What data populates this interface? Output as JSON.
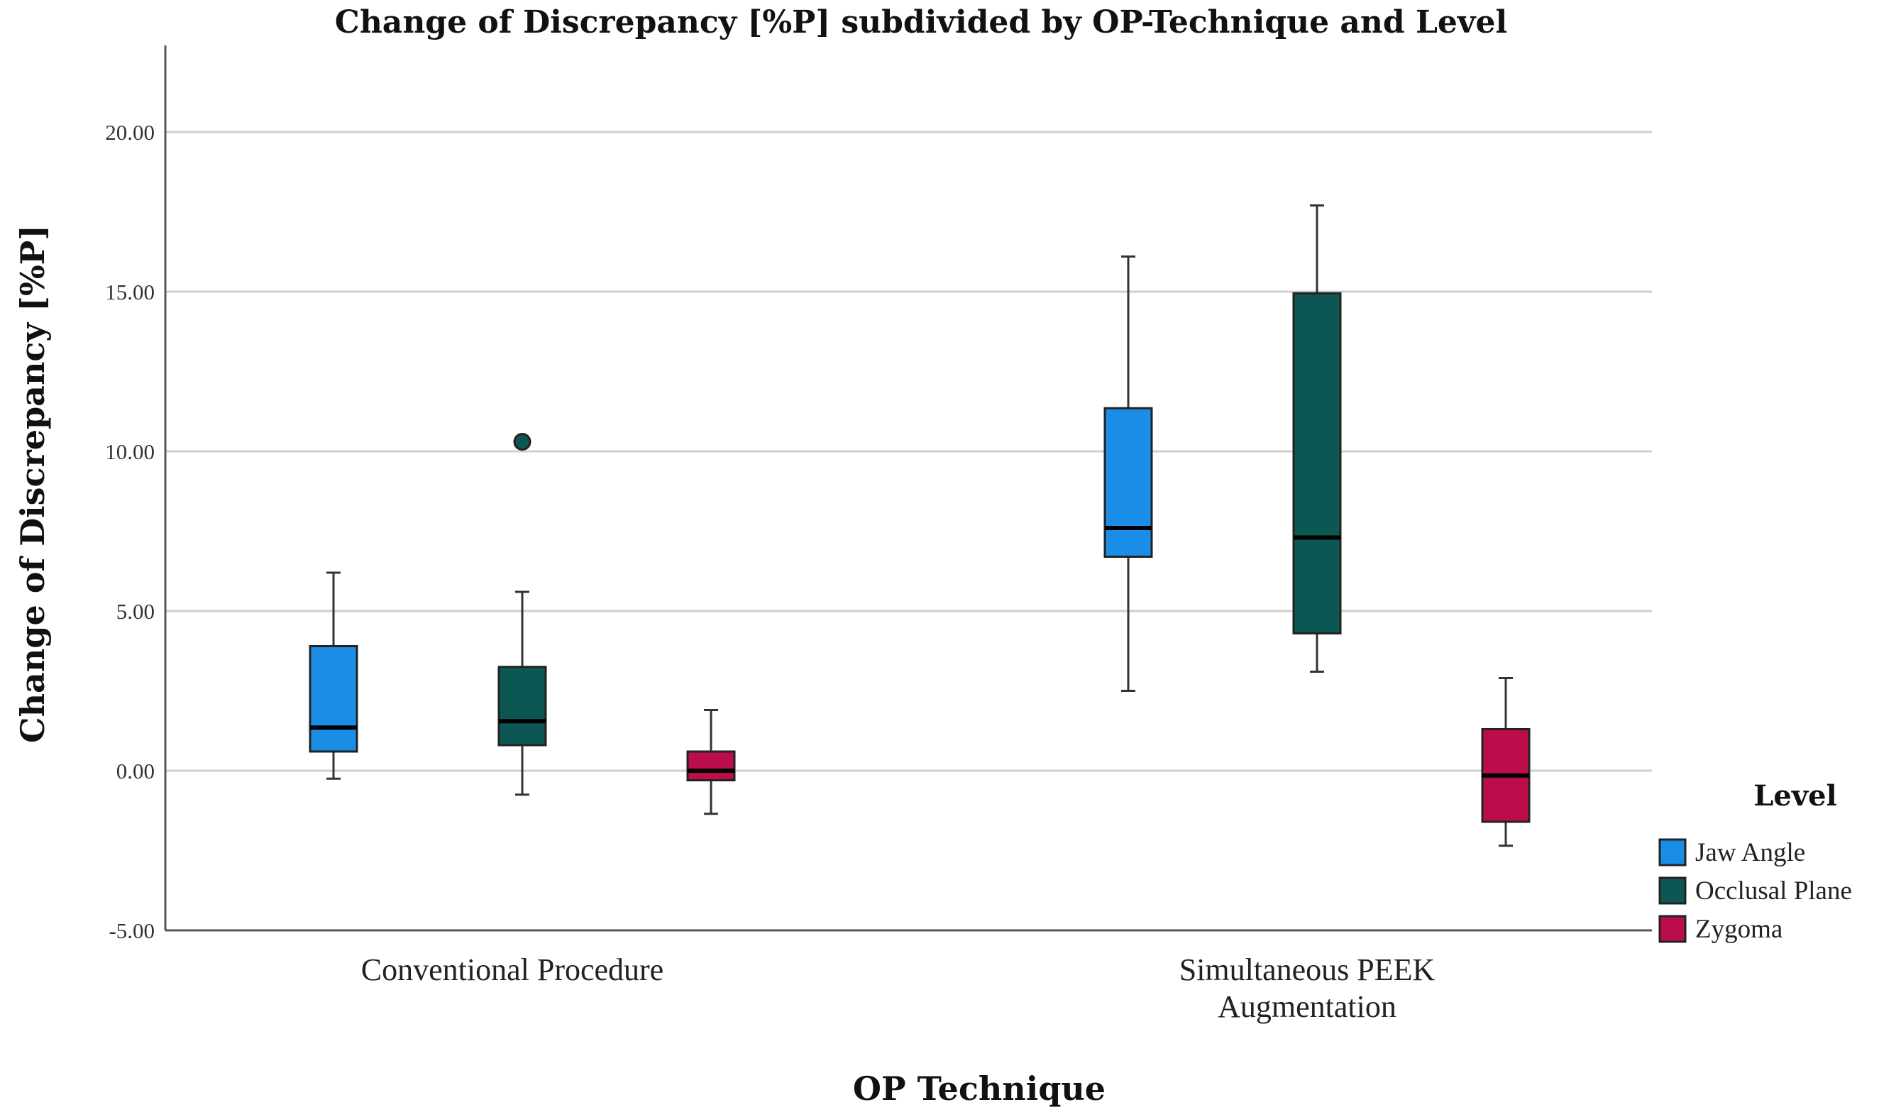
{
  "chart_data": {
    "type": "boxplot",
    "title": "Change of Discrepancy [%P] subdivided by OP-Technique and Level",
    "xlabel": "OP Technique",
    "ylabel": "Change of Discrepancy [%P]",
    "ylim": [
      -5,
      22.7
    ],
    "yticks": [
      {
        "value": 20,
        "label": "20.00"
      },
      {
        "value": 15,
        "label": "15.00"
      },
      {
        "value": 10,
        "label": "10.00"
      },
      {
        "value": 5,
        "label": "5.00"
      },
      {
        "value": 0,
        "label": "0.00"
      },
      {
        "value": -5,
        "label": "-5.00"
      }
    ],
    "grid": true,
    "categories": [
      "Conventional Procedure",
      "Simultaneous PEEK Augmentation"
    ],
    "category_lines": [
      [
        "Conventional Procedure"
      ],
      [
        "Simultaneous PEEK",
        "Augmentation"
      ]
    ],
    "legend": {
      "title": "Level",
      "placement": "right",
      "entries": [
        "Jaw Angle",
        "Occlusal Plane",
        "Zygoma"
      ]
    },
    "series": [
      {
        "name": "Jaw Angle",
        "color": "#1a8ee6",
        "boxes": [
          {
            "category": "Conventional Procedure",
            "whisker_low": -0.25,
            "q1": 0.6,
            "median": 1.35,
            "q3": 3.9,
            "whisker_high": 6.2,
            "outliers": []
          },
          {
            "category": "Simultaneous PEEK Augmentation",
            "whisker_low": 2.5,
            "q1": 6.7,
            "median": 7.6,
            "q3": 11.35,
            "whisker_high": 16.1,
            "outliers": []
          }
        ]
      },
      {
        "name": "Occlusal Plane",
        "color": "#0c5753",
        "boxes": [
          {
            "category": "Conventional Procedure",
            "whisker_low": -0.75,
            "q1": 0.8,
            "median": 1.55,
            "q3": 3.25,
            "whisker_high": 5.6,
            "outliers": [
              10.3
            ]
          },
          {
            "category": "Simultaneous PEEK Augmentation",
            "whisker_low": 3.1,
            "q1": 4.3,
            "median": 7.3,
            "q3": 14.95,
            "whisker_high": 17.7,
            "outliers": []
          }
        ]
      },
      {
        "name": "Zygoma",
        "color": "#bb0d4c",
        "boxes": [
          {
            "category": "Conventional Procedure",
            "whisker_low": -1.35,
            "q1": -0.3,
            "median": 0.0,
            "q3": 0.6,
            "whisker_high": 1.9,
            "outliers": []
          },
          {
            "category": "Simultaneous PEEK Augmentation",
            "whisker_low": -2.35,
            "q1": -1.6,
            "median": -0.15,
            "q3": 1.3,
            "whisker_high": 2.9,
            "outliers": []
          }
        ]
      }
    ]
  }
}
